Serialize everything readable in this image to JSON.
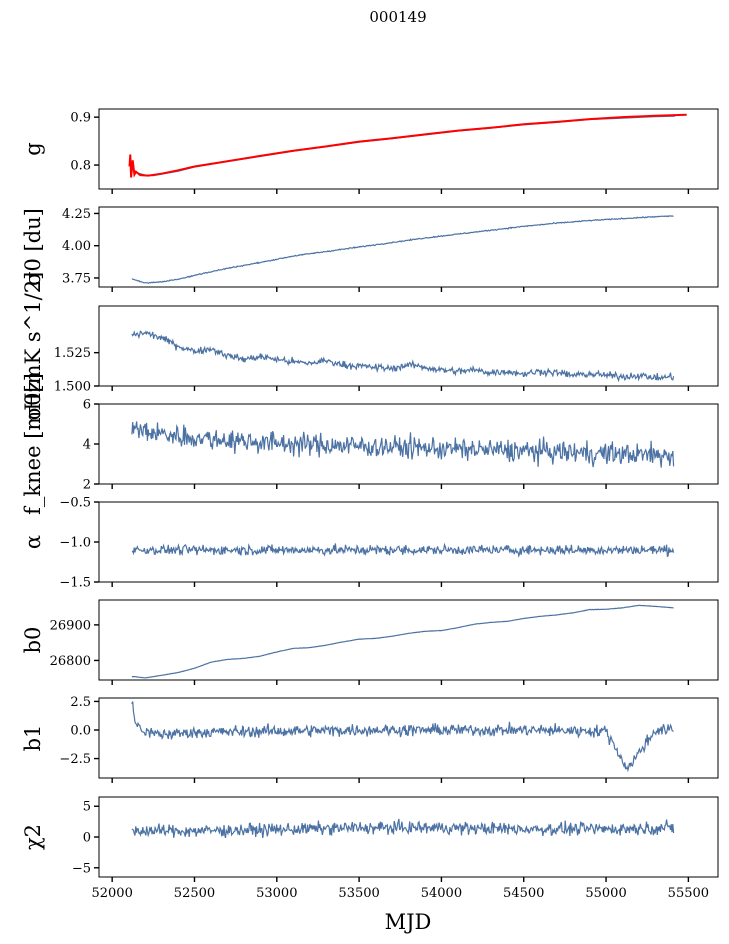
{
  "figure": {
    "title": "000149",
    "xlabel": "MJD"
  },
  "colors": {
    "series": "#4c72a4",
    "fit": "#ff0000"
  },
  "chart_data": [
    {
      "type": "line",
      "ylabel": "g",
      "xlim": [
        51920,
        55680
      ],
      "ylim": [
        0.75,
        0.917
      ],
      "yticks": [
        0.8,
        0.9
      ],
      "yticklabels": [
        "0.8",
        "0.9"
      ],
      "series": [
        {
          "values": [
            [
              52110,
              0.795
            ],
            [
              52150,
              0.784
            ],
            [
              52200,
              0.779
            ],
            [
              52250,
              0.778
            ],
            [
              52300,
              0.781
            ],
            [
              52400,
              0.787
            ],
            [
              52500,
              0.796
            ],
            [
              52700,
              0.807
            ],
            [
              52900,
              0.818
            ],
            [
              53100,
              0.829
            ],
            [
              53300,
              0.838
            ],
            [
              53500,
              0.848
            ],
            [
              53700,
              0.855
            ],
            [
              53900,
              0.863
            ],
            [
              54100,
              0.871
            ],
            [
              54300,
              0.877
            ],
            [
              54500,
              0.884
            ],
            [
              54700,
              0.889
            ],
            [
              54900,
              0.895
            ],
            [
              55100,
              0.898
            ],
            [
              55300,
              0.901
            ],
            [
              55420,
              0.902
            ]
          ]
        },
        {
          "values": [
            [
              52105,
              0.797
            ],
            [
              52110,
              0.822
            ],
            [
              52115,
              0.774
            ],
            [
              52125,
              0.81
            ],
            [
              52135,
              0.78
            ],
            [
              52145,
              0.786
            ],
            [
              52170,
              0.779
            ],
            [
              52220,
              0.778
            ],
            [
              52300,
              0.782
            ],
            [
              52400,
              0.789
            ],
            [
              52500,
              0.797
            ],
            [
              52700,
              0.808
            ],
            [
              52900,
              0.819
            ],
            [
              53100,
              0.83
            ],
            [
              53300,
              0.839
            ],
            [
              53500,
              0.849
            ],
            [
              53700,
              0.856
            ],
            [
              53900,
              0.864
            ],
            [
              54100,
              0.872
            ],
            [
              54300,
              0.878
            ],
            [
              54500,
              0.885
            ],
            [
              54700,
              0.89
            ],
            [
              54900,
              0.896
            ],
            [
              55100,
              0.9
            ],
            [
              55300,
              0.903
            ],
            [
              55490,
              0.905
            ]
          ]
        }
      ]
    },
    {
      "type": "line",
      "ylabel": "σ0 [du]",
      "xlim": [
        51920,
        55680
      ],
      "ylim": [
        3.68,
        4.3
      ],
      "yticks": [
        3.75,
        4.0,
        4.25
      ],
      "yticklabels": [
        "3.75",
        "4.00",
        "4.25"
      ],
      "series": [
        {
          "values": [
            [
              52120,
              3.745
            ],
            [
              52200,
              3.71
            ],
            [
              52300,
              3.72
            ],
            [
              52400,
              3.74
            ],
            [
              52500,
              3.77
            ],
            [
              52700,
              3.825
            ],
            [
              52900,
              3.87
            ],
            [
              53100,
              3.92
            ],
            [
              53300,
              3.955
            ],
            [
              53500,
              3.99
            ],
            [
              53700,
              4.025
            ],
            [
              53900,
              4.06
            ],
            [
              54100,
              4.09
            ],
            [
              54300,
              4.12
            ],
            [
              54500,
              4.15
            ],
            [
              54700,
              4.175
            ],
            [
              54900,
              4.195
            ],
            [
              55100,
              4.21
            ],
            [
              55300,
              4.225
            ],
            [
              55410,
              4.23
            ]
          ]
        }
      ]
    },
    {
      "type": "line",
      "ylabel": "σ0[mK s^1/2]",
      "xlim": [
        51920,
        55680
      ],
      "ylim": [
        1.5,
        1.56
      ],
      "yticks": [
        1.5,
        1.525
      ],
      "yticklabels": [
        "1.500",
        "1.525"
      ],
      "series": [
        {
          "values": [
            [
              52120,
              1.538
            ],
            [
              52200,
              1.54
            ],
            [
              52300,
              1.536
            ],
            [
              52400,
              1.53
            ],
            [
              52500,
              1.526
            ],
            [
              52600,
              1.528
            ],
            [
              52700,
              1.523
            ],
            [
              52800,
              1.52
            ],
            [
              52900,
              1.522
            ],
            [
              53000,
              1.52
            ],
            [
              53100,
              1.518
            ],
            [
              53200,
              1.517
            ],
            [
              53300,
              1.519
            ],
            [
              53400,
              1.516
            ],
            [
              53500,
              1.515
            ],
            [
              53600,
              1.514
            ],
            [
              53700,
              1.513
            ],
            [
              53800,
              1.516
            ],
            [
              53900,
              1.514
            ],
            [
              54000,
              1.512
            ],
            [
              54100,
              1.511
            ],
            [
              54200,
              1.512
            ],
            [
              54300,
              1.51
            ],
            [
              54400,
              1.511
            ],
            [
              54500,
              1.509
            ],
            [
              54600,
              1.511
            ],
            [
              54700,
              1.51
            ],
            [
              54800,
              1.508
            ],
            [
              54900,
              1.509
            ],
            [
              55000,
              1.508
            ],
            [
              55100,
              1.507
            ],
            [
              55200,
              1.508
            ],
            [
              55300,
              1.506
            ],
            [
              55410,
              1.507
            ]
          ]
        }
      ]
    },
    {
      "type": "line",
      "ylabel": "f_knee [mHz]",
      "xlim": [
        51920,
        55680
      ],
      "ylim": [
        2,
        6
      ],
      "yticks": [
        2,
        4,
        6
      ],
      "yticklabels": [
        "2",
        "4",
        "6"
      ],
      "series": [
        {
          "values": [
            [
              52120,
              4.8
            ],
            [
              52200,
              4.6
            ],
            [
              52300,
              4.5
            ],
            [
              52400,
              4.4
            ],
            [
              52500,
              4.3
            ],
            [
              52700,
              4.2
            ],
            [
              52900,
              4.1
            ],
            [
              53100,
              4.0
            ],
            [
              53300,
              3.95
            ],
            [
              53500,
              3.9
            ],
            [
              53700,
              3.85
            ],
            [
              53900,
              3.8
            ],
            [
              54100,
              3.75
            ],
            [
              54300,
              3.7
            ],
            [
              54500,
              3.65
            ],
            [
              54700,
              3.6
            ],
            [
              54900,
              3.55
            ],
            [
              55100,
              3.5
            ],
            [
              55300,
              3.45
            ],
            [
              55410,
              3.4
            ]
          ]
        }
      ]
    },
    {
      "type": "line",
      "ylabel": "α",
      "xlim": [
        51920,
        55680
      ],
      "ylim": [
        -1.5,
        -0.5
      ],
      "yticks": [
        -1.5,
        -1.0,
        -0.5
      ],
      "yticklabels": [
        "−1.5",
        "−1.0",
        "−0.5"
      ],
      "series": [
        {
          "values": [
            [
              52120,
              -1.1
            ],
            [
              52500,
              -1.1
            ],
            [
              53000,
              -1.1
            ],
            [
              53500,
              -1.1
            ],
            [
              54000,
              -1.1
            ],
            [
              54500,
              -1.1
            ],
            [
              55000,
              -1.1
            ],
            [
              55410,
              -1.1
            ]
          ]
        }
      ]
    },
    {
      "type": "line",
      "ylabel": "b0",
      "xlim": [
        51920,
        55680
      ],
      "ylim": [
        26745,
        26970
      ],
      "yticks": [
        26800,
        26900
      ],
      "yticklabels": [
        "26800",
        "26900"
      ],
      "series": [
        {
          "values": [
            [
              52120,
              26755
            ],
            [
              52200,
              26751
            ],
            [
              52300,
              26758
            ],
            [
              52400,
              26766
            ],
            [
              52500,
              26778
            ],
            [
              52600,
              26795
            ],
            [
              52700,
              26803
            ],
            [
              52800,
              26806
            ],
            [
              52900,
              26812
            ],
            [
              53000,
              26824
            ],
            [
              53100,
              26834
            ],
            [
              53200,
              26836
            ],
            [
              53300,
              26843
            ],
            [
              53400,
              26852
            ],
            [
              53500,
              26860
            ],
            [
              53600,
              26862
            ],
            [
              53700,
              26868
            ],
            [
              53800,
              26876
            ],
            [
              53900,
              26882
            ],
            [
              54000,
              26884
            ],
            [
              54100,
              26892
            ],
            [
              54200,
              26902
            ],
            [
              54300,
              26907
            ],
            [
              54400,
              26910
            ],
            [
              54500,
              26918
            ],
            [
              54600,
              26924
            ],
            [
              54700,
              26928
            ],
            [
              54800,
              26934
            ],
            [
              54900,
              26943
            ],
            [
              55000,
              26944
            ],
            [
              55100,
              26948
            ],
            [
              55200,
              26955
            ],
            [
              55300,
              26952
            ],
            [
              55410,
              26948
            ]
          ]
        }
      ]
    },
    {
      "type": "line",
      "ylabel": "b1",
      "xlim": [
        51920,
        55680
      ],
      "ylim": [
        -4.2,
        2.8
      ],
      "yticks": [
        -2.5,
        0.0,
        2.5
      ],
      "yticklabels": [
        "−2.5",
        "0.0",
        "2.5"
      ],
      "series": [
        {
          "values": [
            [
              52120,
              2.5
            ],
            [
              52140,
              0.6
            ],
            [
              52200,
              -0.2
            ],
            [
              52300,
              -0.4
            ],
            [
              52500,
              -0.2
            ],
            [
              53000,
              -0.1
            ],
            [
              53500,
              0.0
            ],
            [
              54000,
              0.0
            ],
            [
              54500,
              0.0
            ],
            [
              55000,
              -0.1
            ],
            [
              55130,
              -3.4
            ],
            [
              55300,
              0.0
            ],
            [
              55410,
              0.0
            ]
          ]
        }
      ]
    },
    {
      "type": "line",
      "ylabel": "χ2",
      "xlim": [
        51920,
        55680
      ],
      "ylim": [
        -6.5,
        6.5
      ],
      "yticks": [
        -5,
        0,
        5
      ],
      "yticklabels": [
        "−5",
        "0",
        "5"
      ],
      "series": [
        {
          "values": [
            [
              52120,
              1.0
            ],
            [
              52500,
              1.0
            ],
            [
              53000,
              1.2
            ],
            [
              53500,
              1.5
            ],
            [
              54000,
              1.5
            ],
            [
              54500,
              1.3
            ],
            [
              55000,
              1.3
            ],
            [
              55410,
              1.5
            ]
          ]
        }
      ]
    }
  ],
  "xaxis": {
    "ticks": [
      52000,
      52500,
      53000,
      53500,
      54000,
      54500,
      55000,
      55500
    ],
    "ticklabels": [
      "52000",
      "52500",
      "53000",
      "53500",
      "54000",
      "54500",
      "55000",
      "55500"
    ]
  }
}
